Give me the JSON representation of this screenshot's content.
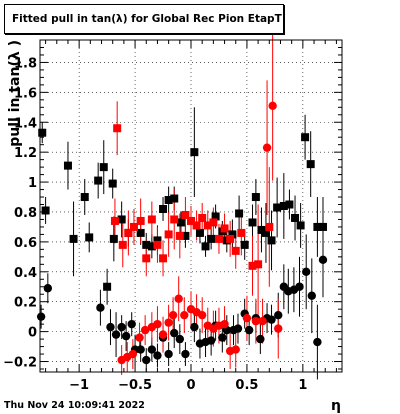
{
  "title": "Fitted pull in tan(λ) for Global Rec Pion EtapT",
  "footer": "Thu Nov 24 10:09:41 2022",
  "chart_data": {
    "type": "scatter",
    "title": "Fitted pull in tan(λ) for Global Rec Pion EtapT",
    "xlabel": "η",
    "ylabel": "pull in tan(λ )",
    "xlim": [
      -1.35,
      1.35
    ],
    "ylim": [
      -0.27,
      1.95
    ],
    "x_ticks": [
      -1,
      -0.5,
      0,
      0.5,
      1
    ],
    "y_ticks": [
      -0.2,
      0,
      0.2,
      0.4,
      0.6,
      0.8,
      1,
      1.2,
      1.4,
      1.6,
      1.8
    ],
    "x_tick_labels": [
      "−1",
      "−0.5",
      "0",
      "0.5",
      "1"
    ],
    "y_tick_labels": [
      "−0.2",
      "0",
      "0.2",
      "0.4",
      "0.6",
      "0.8",
      "1",
      "1.2",
      "1.4",
      "1.6",
      "1.8"
    ],
    "grid": true,
    "series": [
      {
        "marker": "square",
        "color": "#000000",
        "points": [
          {
            "x": -1.33,
            "y": 1.33,
            "err": 0.07
          },
          {
            "x": -1.3,
            "y": 0.81,
            "err": 0.09
          },
          {
            "x": -1.1,
            "y": 1.11,
            "err": 0.16
          },
          {
            "x": -1.05,
            "y": 0.62,
            "err": 0.25
          },
          {
            "x": -0.83,
            "y": 1.01,
            "err": 0.12
          },
          {
            "x": -0.78,
            "y": 1.1,
            "err": 0.18
          },
          {
            "x": -0.7,
            "y": 0.99,
            "err": 0.1
          },
          {
            "x": -0.95,
            "y": 0.9,
            "err": 0.12
          },
          {
            "x": -0.91,
            "y": 0.63,
            "err": 0.1
          },
          {
            "x": -0.75,
            "y": 0.3,
            "err": 0.12
          },
          {
            "x": -0.69,
            "y": 0.62,
            "err": 0.15
          },
          {
            "x": -0.62,
            "y": 0.75,
            "err": 0.12
          },
          {
            "x": -0.56,
            "y": 0.66,
            "err": 0.09
          },
          {
            "x": -0.45,
            "y": 0.66,
            "err": 0.08
          },
          {
            "x": -0.4,
            "y": 0.58,
            "err": 0.08
          },
          {
            "x": -0.35,
            "y": 0.57,
            "err": 0.08
          },
          {
            "x": -0.3,
            "y": 0.61,
            "err": 0.1
          },
          {
            "x": -0.25,
            "y": 0.82,
            "err": 0.08
          },
          {
            "x": -0.2,
            "y": 0.88,
            "err": 0.09
          },
          {
            "x": -0.15,
            "y": 0.89,
            "err": 0.08
          },
          {
            "x": -0.09,
            "y": 0.73,
            "err": 0.07
          },
          {
            "x": -0.05,
            "y": 0.64,
            "err": 0.08
          },
          {
            "x": 0.03,
            "y": 1.2,
            "err": 0.3
          },
          {
            "x": 0.08,
            "y": 0.66,
            "err": 0.07
          },
          {
            "x": 0.13,
            "y": 0.57,
            "err": 0.07
          },
          {
            "x": 0.18,
            "y": 0.62,
            "err": 0.07
          },
          {
            "x": 0.22,
            "y": 0.77,
            "err": 0.08
          },
          {
            "x": 0.28,
            "y": 0.67,
            "err": 0.07
          },
          {
            "x": 0.32,
            "y": 0.61,
            "err": 0.08
          },
          {
            "x": 0.37,
            "y": 0.65,
            "err": 0.1
          },
          {
            "x": 0.43,
            "y": 0.79,
            "err": 0.12
          },
          {
            "x": 0.48,
            "y": 0.58,
            "err": 0.1
          },
          {
            "x": 0.55,
            "y": 0.73,
            "err": 0.12
          },
          {
            "x": 0.58,
            "y": 0.9,
            "err": 0.12
          },
          {
            "x": 0.63,
            "y": 0.68,
            "err": 0.15
          },
          {
            "x": 0.67,
            "y": 0.66,
            "err": 0.2
          },
          {
            "x": 0.72,
            "y": 0.61,
            "err": 0.2
          },
          {
            "x": 0.77,
            "y": 0.83,
            "err": 0.2
          },
          {
            "x": 0.83,
            "y": 0.84,
            "err": 0.22
          },
          {
            "x": 0.88,
            "y": 0.85,
            "err": 0.1
          },
          {
            "x": 0.93,
            "y": 0.76,
            "err": 0.15
          },
          {
            "x": 0.98,
            "y": 0.71,
            "err": 0.15
          },
          {
            "x": 1.02,
            "y": 1.3,
            "err": 0.15
          },
          {
            "x": 1.07,
            "y": 1.12,
            "err": 0.22
          },
          {
            "x": 1.13,
            "y": 0.7,
            "err": 0.2
          },
          {
            "x": 1.18,
            "y": 0.7,
            "err": 0.2
          }
        ]
      },
      {
        "marker": "square",
        "color": "#ff0000",
        "points": [
          {
            "x": -0.68,
            "y": 0.74,
            "err": 0.15
          },
          {
            "x": -0.66,
            "y": 1.36,
            "err": 0.18
          },
          {
            "x": -0.61,
            "y": 0.58,
            "err": 0.15
          },
          {
            "x": -0.56,
            "y": 0.66,
            "err": 0.15
          },
          {
            "x": -0.51,
            "y": 0.7,
            "err": 0.12
          },
          {
            "x": -0.45,
            "y": 0.74,
            "err": 0.15
          },
          {
            "x": -0.4,
            "y": 0.49,
            "err": 0.12
          },
          {
            "x": -0.35,
            "y": 0.75,
            "err": 0.12
          },
          {
            "x": -0.3,
            "y": 0.58,
            "err": 0.12
          },
          {
            "x": -0.25,
            "y": 0.49,
            "err": 0.12
          },
          {
            "x": -0.2,
            "y": 0.65,
            "err": 0.15
          },
          {
            "x": -0.15,
            "y": 0.75,
            "err": 0.2
          },
          {
            "x": -0.1,
            "y": 0.64,
            "err": 0.15
          },
          {
            "x": -0.05,
            "y": 0.78,
            "err": 0.12
          },
          {
            "x": 0.0,
            "y": 0.74,
            "err": 0.1
          },
          {
            "x": 0.05,
            "y": 0.71,
            "err": 0.1
          },
          {
            "x": 0.1,
            "y": 0.76,
            "err": 0.1
          },
          {
            "x": 0.15,
            "y": 0.71,
            "err": 0.1
          },
          {
            "x": 0.2,
            "y": 0.73,
            "err": 0.1
          },
          {
            "x": 0.25,
            "y": 0.62,
            "err": 0.1
          },
          {
            "x": 0.3,
            "y": 0.69,
            "err": 0.1
          },
          {
            "x": 0.35,
            "y": 0.62,
            "err": 0.12
          },
          {
            "x": 0.4,
            "y": 0.54,
            "err": 0.12
          },
          {
            "x": 0.45,
            "y": 0.66,
            "err": 0.15
          },
          {
            "x": 0.55,
            "y": 0.44,
            "err": 0.2
          },
          {
            "x": 0.6,
            "y": 0.45,
            "err": 0.4
          },
          {
            "x": 0.7,
            "y": 0.7,
            "err": 0.4
          }
        ]
      },
      {
        "marker": "circle",
        "color": "#000000",
        "points": [
          {
            "x": -1.34,
            "y": 0.1,
            "err": 0.08
          },
          {
            "x": -1.28,
            "y": 0.29,
            "err": 0.1
          },
          {
            "x": -0.81,
            "y": 0.16,
            "err": 0.12
          },
          {
            "x": -0.72,
            "y": 0.03,
            "err": 0.12
          },
          {
            "x": -0.67,
            "y": -0.02,
            "err": 0.15
          },
          {
            "x": -0.62,
            "y": 0.03,
            "err": 0.08
          },
          {
            "x": -0.58,
            "y": -0.03,
            "err": 0.1
          },
          {
            "x": -0.53,
            "y": 0.05,
            "err": 0.08
          },
          {
            "x": -0.5,
            "y": -0.12,
            "err": 0.1
          },
          {
            "x": -0.45,
            "y": -0.12,
            "err": 0.08
          },
          {
            "x": -0.4,
            "y": -0.19,
            "err": 0.08
          },
          {
            "x": -0.35,
            "y": -0.12,
            "err": 0.08
          },
          {
            "x": -0.3,
            "y": -0.16,
            "err": 0.08
          },
          {
            "x": -0.25,
            "y": -0.04,
            "err": 0.08
          },
          {
            "x": -0.2,
            "y": -0.15,
            "err": 0.08
          },
          {
            "x": -0.15,
            "y": -0.01,
            "err": 0.1
          },
          {
            "x": -0.1,
            "y": -0.05,
            "err": 0.1
          },
          {
            "x": -0.05,
            "y": -0.15,
            "err": 0.08
          },
          {
            "x": 0.03,
            "y": 0.03,
            "err": 0.1
          },
          {
            "x": 0.08,
            "y": -0.08,
            "err": 0.1
          },
          {
            "x": 0.13,
            "y": -0.07,
            "err": 0.1
          },
          {
            "x": 0.18,
            "y": -0.06,
            "err": 0.1
          },
          {
            "x": 0.22,
            "y": 0.04,
            "err": 0.1
          },
          {
            "x": 0.28,
            "y": -0.04,
            "err": 0.1
          },
          {
            "x": 0.32,
            "y": 0.01,
            "err": 0.1
          },
          {
            "x": 0.38,
            "y": 0.01,
            "err": 0.1
          },
          {
            "x": 0.42,
            "y": 0.02,
            "err": 0.1
          },
          {
            "x": 0.48,
            "y": 0.12,
            "err": 0.1
          },
          {
            "x": 0.52,
            "y": 0.01,
            "err": 0.1
          },
          {
            "x": 0.58,
            "y": 0.09,
            "err": 0.1
          },
          {
            "x": 0.62,
            "y": -0.05,
            "err": 0.1
          },
          {
            "x": 0.68,
            "y": 0.09,
            "err": 0.1
          },
          {
            "x": 0.72,
            "y": 0.08,
            "err": 0.1
          },
          {
            "x": 0.78,
            "y": 0.11,
            "err": 0.15
          },
          {
            "x": 0.83,
            "y": 0.3,
            "err": 0.15
          },
          {
            "x": 0.87,
            "y": 0.27,
            "err": 0.15
          },
          {
            "x": 0.92,
            "y": 0.28,
            "err": 0.15
          },
          {
            "x": 0.97,
            "y": 0.3,
            "err": 0.2
          },
          {
            "x": 1.03,
            "y": 0.4,
            "err": 0.25
          },
          {
            "x": 1.08,
            "y": 0.24,
            "err": 0.25
          },
          {
            "x": 1.13,
            "y": -0.07,
            "err": 0.25
          },
          {
            "x": 1.18,
            "y": 0.48,
            "err": 0.25
          }
        ]
      },
      {
        "marker": "circle",
        "color": "#ff0000",
        "points": [
          {
            "x": -0.62,
            "y": -0.19,
            "err": 0.1
          },
          {
            "x": -0.57,
            "y": -0.17,
            "err": 0.1
          },
          {
            "x": -0.52,
            "y": -0.15,
            "err": 0.1
          },
          {
            "x": -0.46,
            "y": -0.04,
            "err": 0.1
          },
          {
            "x": -0.41,
            "y": 0.01,
            "err": 0.1
          },
          {
            "x": -0.35,
            "y": 0.03,
            "err": 0.1
          },
          {
            "x": -0.3,
            "y": 0.05,
            "err": 0.12
          },
          {
            "x": -0.25,
            "y": -0.02,
            "err": 0.12
          },
          {
            "x": -0.2,
            "y": 0.06,
            "err": 0.12
          },
          {
            "x": -0.16,
            "y": 0.11,
            "err": 0.12
          },
          {
            "x": -0.11,
            "y": 0.22,
            "err": 0.15
          },
          {
            "x": -0.06,
            "y": 0.11,
            "err": 0.12
          },
          {
            "x": 0.0,
            "y": 0.15,
            "err": 0.12
          },
          {
            "x": 0.05,
            "y": 0.13,
            "err": 0.12
          },
          {
            "x": 0.1,
            "y": 0.11,
            "err": 0.12
          },
          {
            "x": 0.15,
            "y": 0.04,
            "err": 0.12
          },
          {
            "x": 0.2,
            "y": 0.02,
            "err": 0.12
          },
          {
            "x": 0.25,
            "y": 0.04,
            "err": 0.12
          },
          {
            "x": 0.3,
            "y": 0.05,
            "err": 0.12
          },
          {
            "x": 0.35,
            "y": -0.13,
            "err": 0.12
          },
          {
            "x": 0.4,
            "y": -0.12,
            "err": 0.12
          },
          {
            "x": 0.5,
            "y": 0.09,
            "err": 0.15
          },
          {
            "x": 0.58,
            "y": 0.07,
            "err": 0.15
          },
          {
            "x": 0.64,
            "y": 0.07,
            "err": 0.15
          },
          {
            "x": 0.68,
            "y": 1.23,
            "err": 0.45
          },
          {
            "x": 0.73,
            "y": 1.51,
            "err": 0.5
          },
          {
            "x": 0.78,
            "y": 0.02,
            "err": 0.2
          }
        ]
      }
    ]
  }
}
